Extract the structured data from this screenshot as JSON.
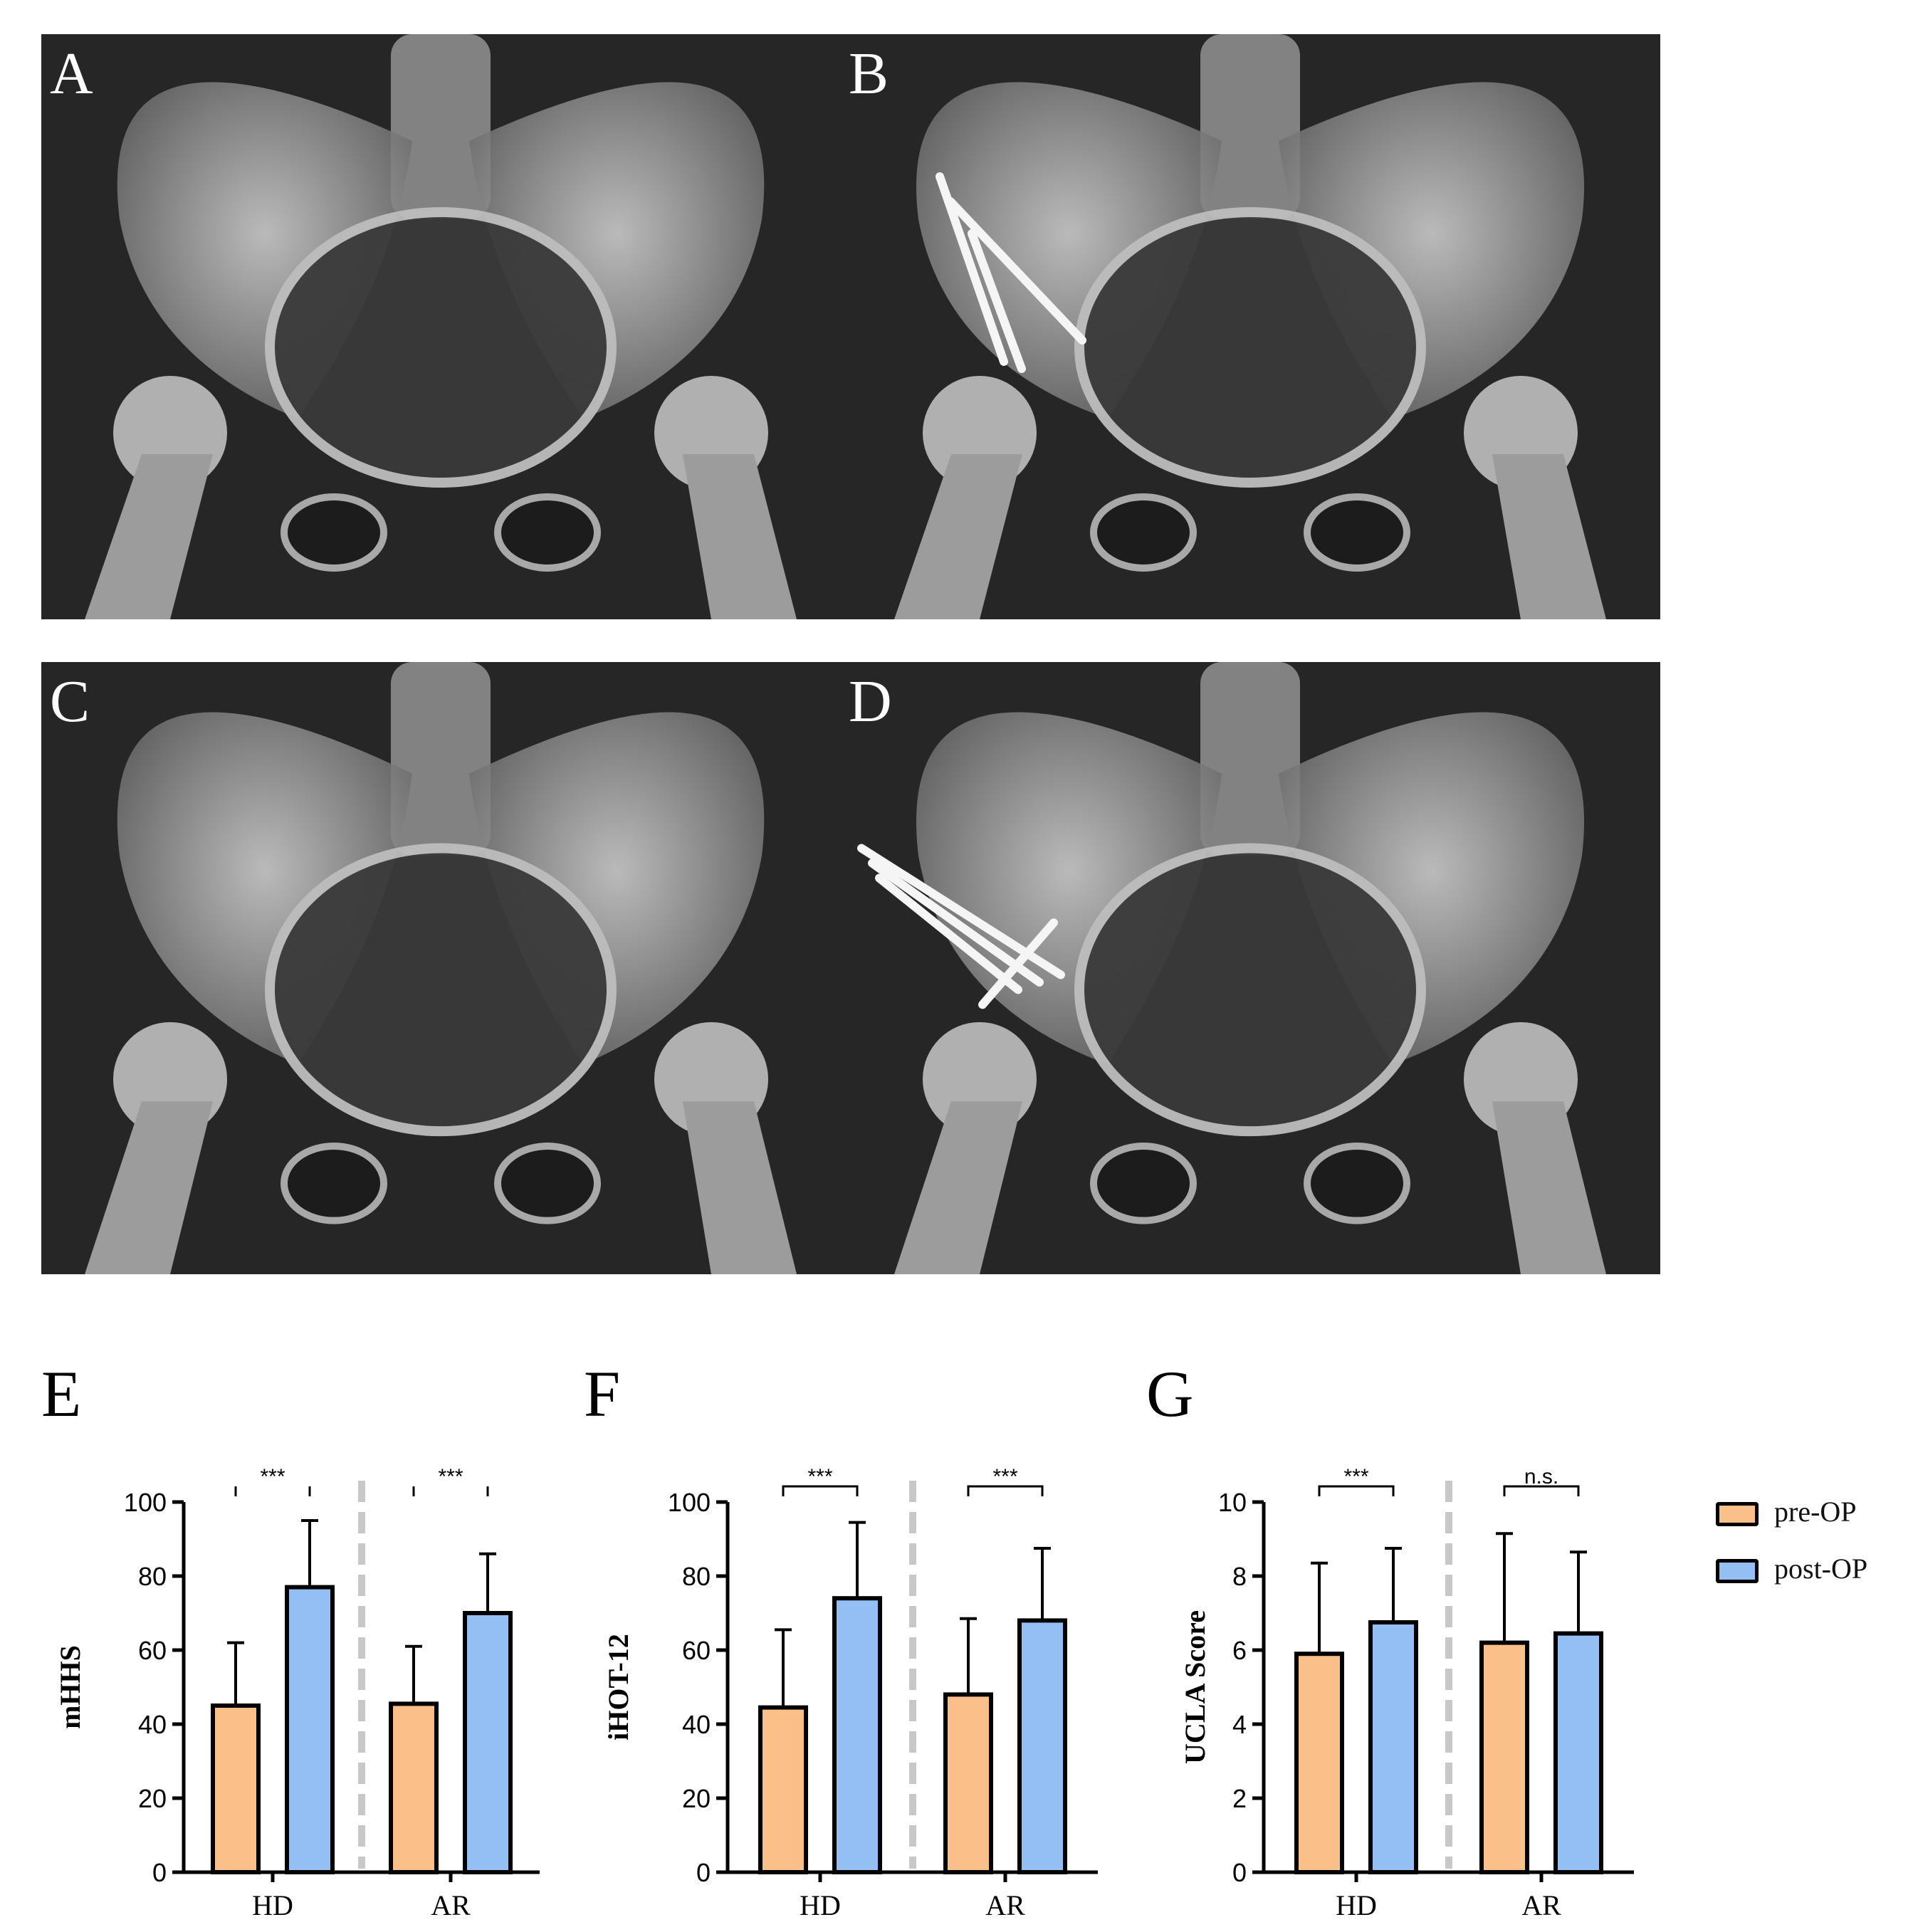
{
  "xray_panels": [
    {
      "letter": "A",
      "hardware": "none"
    },
    {
      "letter": "B",
      "hardware": "screws-vertical"
    },
    {
      "letter": "C",
      "hardware": "none"
    },
    {
      "letter": "D",
      "hardware": "screws-horizontal"
    }
  ],
  "legend": {
    "items": [
      {
        "label": "pre-OP",
        "color": "#FBC08A"
      },
      {
        "label": "post-OP",
        "color": "#93BFF5"
      }
    ]
  },
  "colors": {
    "pre": "#FBC08A",
    "post": "#93BFF5",
    "divider": "#c8c8c8",
    "xray_bg": "#141414"
  },
  "chart_data": [
    {
      "panel": "E",
      "type": "bar",
      "ylabel": "mHHS",
      "categories": [
        "HD",
        "AR"
      ],
      "ylim": [
        0,
        100
      ],
      "yticks": [
        "0",
        "20",
        "40",
        "60",
        "80",
        "100"
      ],
      "series": [
        {
          "name": "pre-OP",
          "values": [
            45,
            45.5
          ],
          "errors": [
            17,
            15.5
          ]
        },
        {
          "name": "post-OP",
          "values": [
            77,
            70
          ],
          "errors": [
            18,
            16
          ]
        }
      ],
      "significance": [
        "***",
        "***"
      ],
      "bracket_dashed": true
    },
    {
      "panel": "F",
      "type": "bar",
      "ylabel": "iHOT-12",
      "categories": [
        "HD",
        "AR"
      ],
      "ylim": [
        0,
        100
      ],
      "yticks": [
        "0",
        "20",
        "40",
        "60",
        "80",
        "100"
      ],
      "series": [
        {
          "name": "pre-OP",
          "values": [
            44.5,
            48
          ],
          "errors": [
            21,
            20.5
          ]
        },
        {
          "name": "post-OP",
          "values": [
            74,
            68
          ],
          "errors": [
            20.5,
            19.5
          ]
        }
      ],
      "significance": [
        "***",
        "***"
      ],
      "bracket_dashed": false
    },
    {
      "panel": "G",
      "type": "bar",
      "ylabel": "UCLA Score",
      "categories": [
        "HD",
        "AR"
      ],
      "ylim": [
        0,
        10
      ],
      "yticks": [
        "0",
        "2",
        "4",
        "6",
        "8",
        "10"
      ],
      "series": [
        {
          "name": "pre-OP",
          "values": [
            5.9,
            6.2
          ],
          "errors": [
            2.45,
            2.95
          ]
        },
        {
          "name": "post-OP",
          "values": [
            6.75,
            6.45
          ],
          "errors": [
            2.0,
            2.2
          ]
        }
      ],
      "significance": [
        "***",
        "n.s."
      ],
      "bracket_dashed": false
    }
  ]
}
